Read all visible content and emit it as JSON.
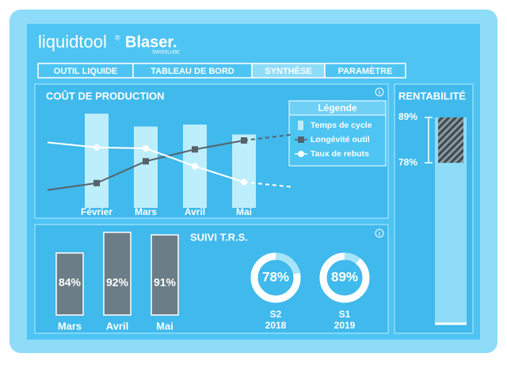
{
  "header": {
    "brand": "liquidtool",
    "brand_mark": "®",
    "partner": "Blaser.",
    "partner_sub": "SWISSLUBE"
  },
  "tabs": {
    "items": [
      "OUTIL LIQUIDE",
      "TABLEAU DE BORD",
      "SYNTHÈSE",
      "PARAMÈTRE"
    ],
    "active": 2
  },
  "production": {
    "type": "bar-line",
    "title": "COÛT DE PRODUCTION",
    "legend_title": "Légende",
    "categories": [
      null,
      "Février",
      "Mars",
      "Avril",
      "Mai",
      null
    ],
    "ylim": [
      0,
      100
    ],
    "dashed": [
      false,
      false,
      false,
      false,
      false,
      true
    ],
    "series": [
      {
        "name": "Temps de cycle",
        "kind": "bar",
        "color": "#bdeefc",
        "values": [
          null,
          95,
          82,
          84,
          74,
          null
        ]
      },
      {
        "name": "Longévité outil",
        "kind": "line",
        "marker": "square",
        "color": "#56636b",
        "values": [
          18,
          25,
          47,
          59,
          68,
          74
        ],
        "markers": [
          false,
          true,
          true,
          true,
          true,
          false
        ]
      },
      {
        "name": "Taux de rebuts",
        "kind": "line",
        "marker": "circle",
        "color": "#ffffff",
        "values": [
          66,
          61,
          60,
          42,
          26,
          21
        ],
        "markers": [
          false,
          true,
          true,
          true,
          true,
          false
        ]
      }
    ]
  },
  "trs": {
    "type": "bar",
    "title": "SUIVI T.R.S.",
    "categories": [
      "Mars",
      "Avril",
      "Mai"
    ],
    "values": [
      84,
      92,
      91
    ],
    "value_labels": [
      "84%",
      "92%",
      "91%"
    ],
    "ylim": [
      60,
      95
    ],
    "color": "#6b7d86"
  },
  "gauges": {
    "type": "donut",
    "values": [
      78,
      89
    ],
    "value_labels": [
      "78%",
      "89%"
    ],
    "periods": [
      "S2",
      "S1"
    ],
    "years": [
      "2018",
      "2019"
    ],
    "color": "#ffffff",
    "track_color": "#a6e4fa"
  },
  "rentabilite": {
    "type": "range-bar",
    "title": "RENTABILITÉ",
    "ylim": [
      39,
      89
    ],
    "range": [
      78,
      89
    ],
    "range_labels": [
      "78%",
      "89%"
    ]
  }
}
